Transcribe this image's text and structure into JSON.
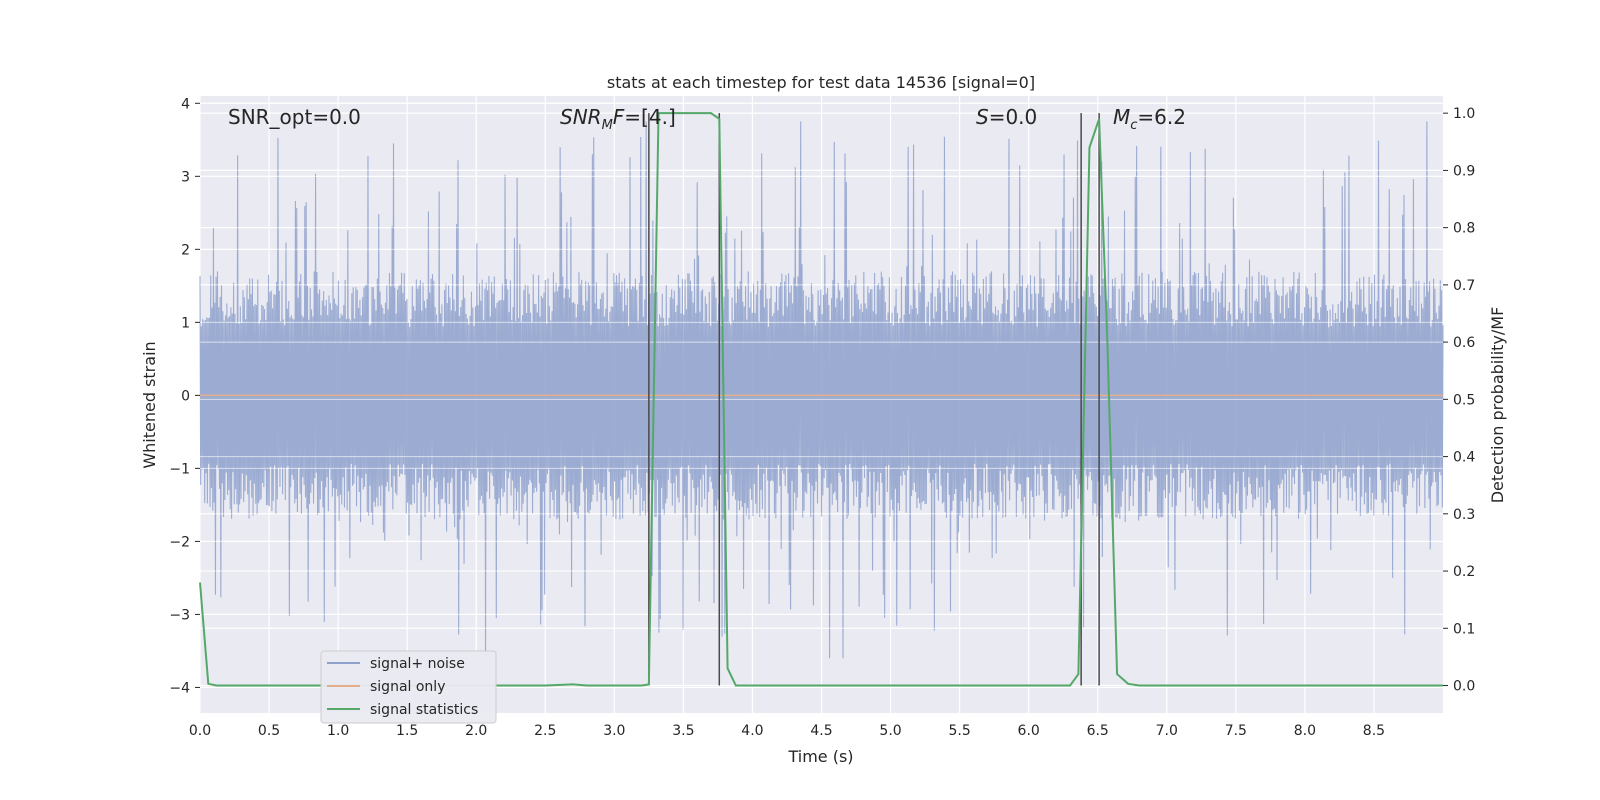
{
  "chart_data": {
    "type": "line",
    "title": "stats at each timestep for test data 14536 [signal=0]",
    "xlabel": "Time (s)",
    "ylabel_left": "Whitened strain",
    "ylabel_right": "Detection probability/MF",
    "xlim": [
      0.0,
      9.0
    ],
    "ylim_left": [
      -4.35,
      4.1
    ],
    "ylim_right": [
      -0.048,
      1.03
    ],
    "x_ticks": [
      "0.0",
      "0.5",
      "1.0",
      "1.5",
      "2.0",
      "2.5",
      "3.0",
      "3.5",
      "4.0",
      "4.5",
      "5.0",
      "5.5",
      "6.0",
      "6.5",
      "7.0",
      "7.5",
      "8.0",
      "8.5"
    ],
    "y_left_ticks": [
      "4",
      "3",
      "2",
      "1",
      "0",
      "−1",
      "−2",
      "−3",
      "−4"
    ],
    "y_right_ticks": [
      "1.0",
      "0.9",
      "0.8",
      "0.7",
      "0.6",
      "0.5",
      "0.4",
      "0.3",
      "0.2",
      "0.1",
      "0.0"
    ],
    "grid": true,
    "annotations": {
      "snr_opt": "SNR_opt=0.0",
      "snr_mf": "SNRMF=[4.]",
      "s_value": "S=0.0",
      "mc_value": "Mc=6.2"
    },
    "vertical_lines_x": [
      3.25,
      3.76,
      6.38,
      6.51
    ],
    "legend": {
      "placement": "lower-left",
      "entries": [
        "signal+ noise",
        "signal only",
        "signal statistics"
      ]
    },
    "series": [
      {
        "name": "signal+ noise",
        "axis": "left",
        "color": "#8da0cb",
        "description_values": {
          "typical_range": [
            -1.7,
            1.7
          ],
          "max": 3.75,
          "min": -3.6
        }
      },
      {
        "name": "signal only",
        "axis": "left",
        "color": "#e5ae8c",
        "constant_value": 0.0
      },
      {
        "name": "signal statistics",
        "axis": "right",
        "color": "#55a868",
        "x": [
          0.0,
          0.06,
          0.12,
          0.5,
          1.0,
          1.5,
          2.0,
          2.5,
          2.7,
          2.8,
          3.0,
          3.2,
          3.25,
          3.32,
          3.5,
          3.7,
          3.76,
          3.82,
          3.88,
          4.0,
          4.5,
          5.0,
          5.5,
          6.0,
          6.3,
          6.36,
          6.44,
          6.51,
          6.57,
          6.64,
          6.72,
          6.8,
          7.0,
          7.5,
          8.0,
          8.5,
          9.0
        ],
        "y": [
          0.18,
          0.003,
          0.0,
          0.0,
          0.0,
          0.0,
          0.0,
          0.0,
          0.002,
          0.0,
          0.0,
          0.0,
          0.002,
          1.0,
          1.0,
          1.0,
          0.99,
          0.03,
          0.0,
          0.0,
          0.0,
          0.0,
          0.0,
          0.0,
          0.0,
          0.02,
          0.94,
          0.99,
          0.6,
          0.02,
          0.003,
          0.0,
          0.0,
          0.0,
          0.0,
          0.0,
          0.0
        ]
      }
    ],
    "colors": {
      "plot_bg": "#eaeaf2",
      "grid": "#ffffff",
      "vline": "#4a4a4a"
    }
  }
}
